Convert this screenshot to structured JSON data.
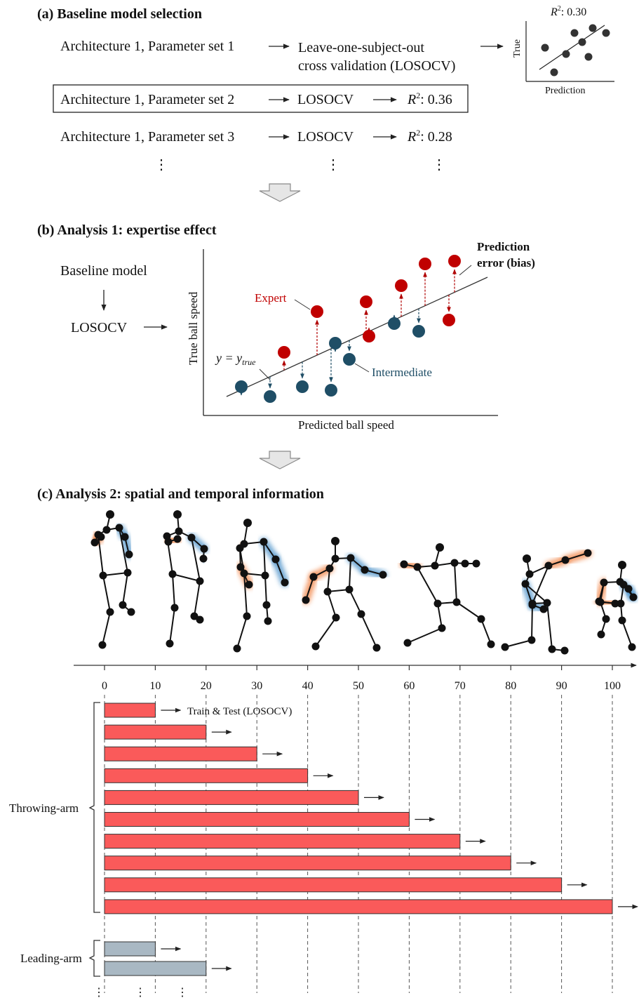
{
  "panel_a": {
    "heading": "(a) Baseline model selection",
    "row1_left": "Architecture 1, Parameter set 1",
    "row1_mid_line1": "Leave-one-subject-out",
    "row1_mid_line2": "cross validation (LOSOCV)",
    "row2_left": "Architecture 1, Parameter set 2",
    "row2_mid": "LOSOCV",
    "row2_r2_value": ": 0.36",
    "row3_left": "Architecture 1, Parameter set 3",
    "row3_mid": "LOSOCV",
    "row3_r2_value": ": 0.28",
    "r2_symbol": "R",
    "r2_exp": "2",
    "ellipsis": "⋮",
    "mini_plot": {
      "r2_value": ": 0.30",
      "ylabel": "True",
      "xlabel": "Prediction"
    }
  },
  "panel_b": {
    "heading": "(b) Analysis 1: expertise effect",
    "baseline_model": "Baseline model",
    "losocv": "LOSOCV",
    "ylabel": "True ball speed",
    "xlabel": "Predicted ball speed",
    "expert_label": "Expert",
    "intermediate_label": "Intermediate",
    "error_label_line1": "Prediction",
    "error_label_line2": "error (bias)",
    "equation_lhs": "y = y",
    "equation_sub": "true",
    "colors": {
      "expert": "#c00000",
      "intermediate": "#1f4e66"
    }
  },
  "panel_c": {
    "heading": "(c) Analysis 2: spatial and temporal information",
    "axis_ticks": [
      "0",
      "10",
      "20",
      "30",
      "40",
      "50",
      "60",
      "70",
      "80",
      "90",
      "100"
    ],
    "train_test_label": "Train & Test (LOSOCV)",
    "throwing_arm_label": "Throwing-arm",
    "leading_arm_label": "Leading-arm",
    "throwing_windows_end": [
      10,
      20,
      30,
      40,
      50,
      60,
      70,
      80,
      90,
      100
    ],
    "leading_windows_end": [
      10,
      20
    ],
    "colors": {
      "throwing": "#fa5a5a",
      "leading": "#a9b8c3",
      "throw_glow": "#f08040",
      "lead_glow": "#4a90c8"
    }
  }
}
